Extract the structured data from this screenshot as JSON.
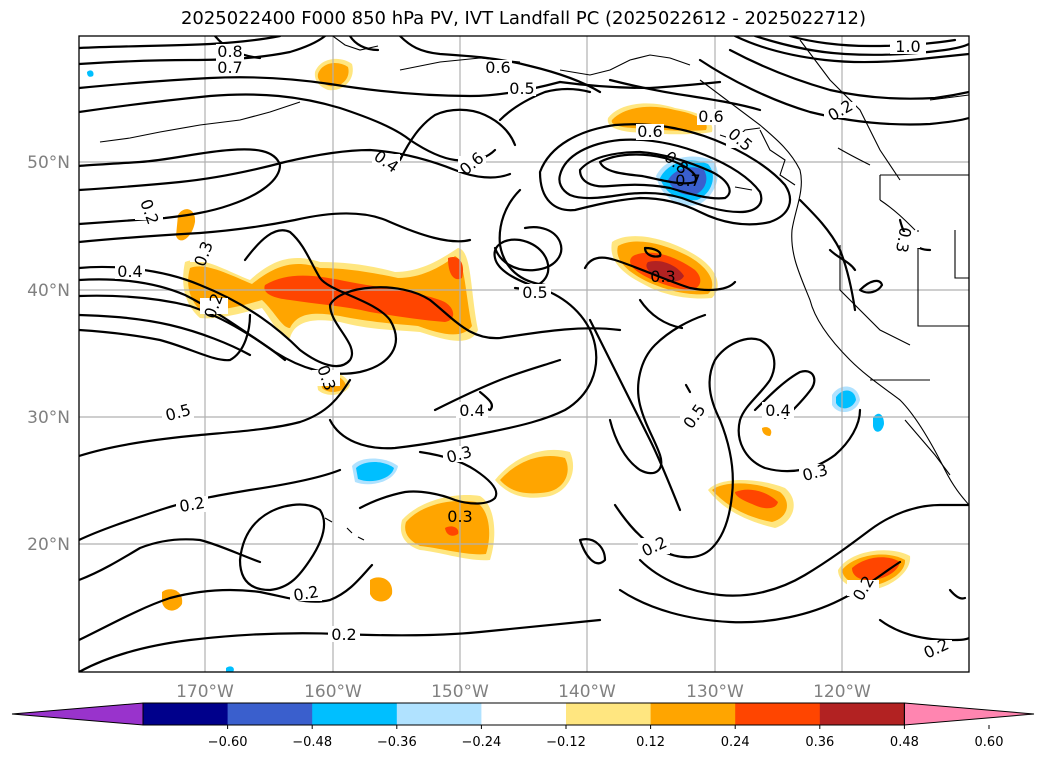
{
  "title": "2025022400 F000 850 hPa PV, IVT Landfall PC (2025022612 - 2025022712)",
  "map": {
    "lon_ticks": [
      "170°W",
      "160°W",
      "150°W",
      "140°W",
      "130°W",
      "120°W"
    ],
    "lat_ticks": [
      "50°N",
      "40°N",
      "30°N",
      "20°N"
    ],
    "contour_labels": [
      "0.8",
      "0.7",
      "0.6",
      "0.5",
      "0.4",
      "0.6",
      "0.2",
      "0.3",
      "0.4",
      "0.2",
      "0.5",
      "0.6",
      "0.7",
      "0.3",
      "0.5",
      "0.4",
      "0.3",
      "0.5",
      "0.3",
      "0.4",
      "0.3",
      "0.2",
      "0.2",
      "0.2",
      "0.2",
      "0.2",
      "0.3",
      "0.5",
      "0.6",
      "0.8",
      "0.2",
      "1.0",
      "0.2",
      "0.3"
    ]
  },
  "colorbar": {
    "ticks": [
      "−0.60",
      "−0.48",
      "−0.36",
      "−0.24",
      "−0.12",
      "0.12",
      "0.24",
      "0.36",
      "0.48",
      "0.60"
    ],
    "colors": [
      "#9933cc",
      "#00008b",
      "#3a5fcd",
      "#00bfff",
      "#b0e2ff",
      "#ffffff",
      "#ffe680",
      "#ffa500",
      "#ff4500",
      "#b22222",
      "#ff85b0"
    ]
  }
}
